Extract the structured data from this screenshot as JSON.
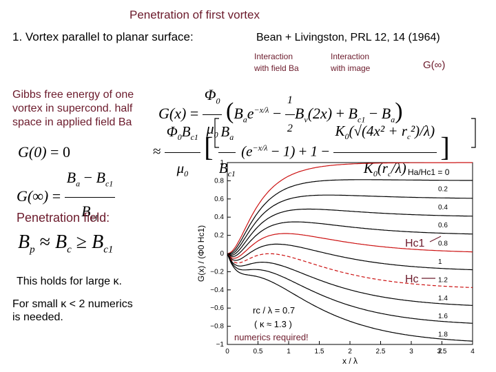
{
  "slide": {
    "title": "Penetration of first vortex",
    "heading": "1. Vortex parallel to planar surface:",
    "reference": "Bean + Livingston, PRL 12, 14 (1964)",
    "label_interaction_field": "Interaction with field Ba",
    "label_interaction_image": "Interaction with image",
    "label_g_infinity": "G(∞)",
    "gibbs_text": "Gibbs free energy of one vortex in supercond. half space in applied field Ba",
    "penetration_label": "Penetration field:",
    "holds_text": "This holds for large κ.",
    "small_kappa_text": "For small κ < 2 numerics is needed.",
    "numerics_label": "numerics required!",
    "hc1_label": "Hc1",
    "hc_label": "Hc",
    "equations": {
      "gx": "G(x) = Φ0/μ0 ( Ba e^(−x/λ) − ½ Bv(2x) + Bc1 − Ba )",
      "gx_approx": "≈ Φ0 Bc1/μ0 [ Ba/Bc1 (e^(−x/λ) − 1) + 1 − K0(√(4x² + rc²)/λ)/K0(rc/λ) ]",
      "g0": "G(0) = 0",
      "ginf": "G(∞) = (Ba − Bc1)/Bc1",
      "bp": "Bp ≈ Bc ≥ Bc1"
    }
  },
  "chart_data": {
    "type": "line",
    "xlabel": "x / λ",
    "ylabel": "G(x) / (Φ0 Hc1)",
    "xlim": [
      0,
      4
    ],
    "ylim": [
      -1,
      1
    ],
    "xticks": [
      0,
      0.5,
      1,
      1.5,
      2,
      2.5,
      3,
      3.5,
      4
    ],
    "xtick_labels": [
      "0",
      "0.5",
      "1",
      "1.5",
      "2",
      "2.5",
      "3",
      "3.5",
      "4"
    ],
    "yticks": [
      -1,
      -0.8,
      -0.6,
      -0.4,
      -0.2,
      0,
      0.2,
      0.4,
      0.6,
      0.8,
      1
    ],
    "ytick_labels": [
      "−1",
      "−0.8",
      "−0.6",
      "−0.4",
      "−0.2",
      "0",
      "0.2",
      "0.4",
      "0.6",
      "0.8",
      "1"
    ],
    "curve_label_head": "Ha/Hc1 = 0",
    "series_labels": [
      "0",
      "0.2",
      "0.4",
      "0.6",
      "0.8",
      "1",
      "1.2",
      "1.4",
      "1.6",
      "1.8",
      "2"
    ],
    "h_values": [
      0,
      0.2,
      0.4,
      0.6,
      0.8,
      1.0,
      1.2,
      1.4,
      1.6,
      1.8,
      2.0
    ],
    "highlight_series": [
      "0",
      "1",
      "1.4"
    ],
    "highlight_color": "#cc1111",
    "annotation_rc": "rc / λ = 0.7",
    "annotation_kappa": "( κ ≈ 1.3 )"
  }
}
